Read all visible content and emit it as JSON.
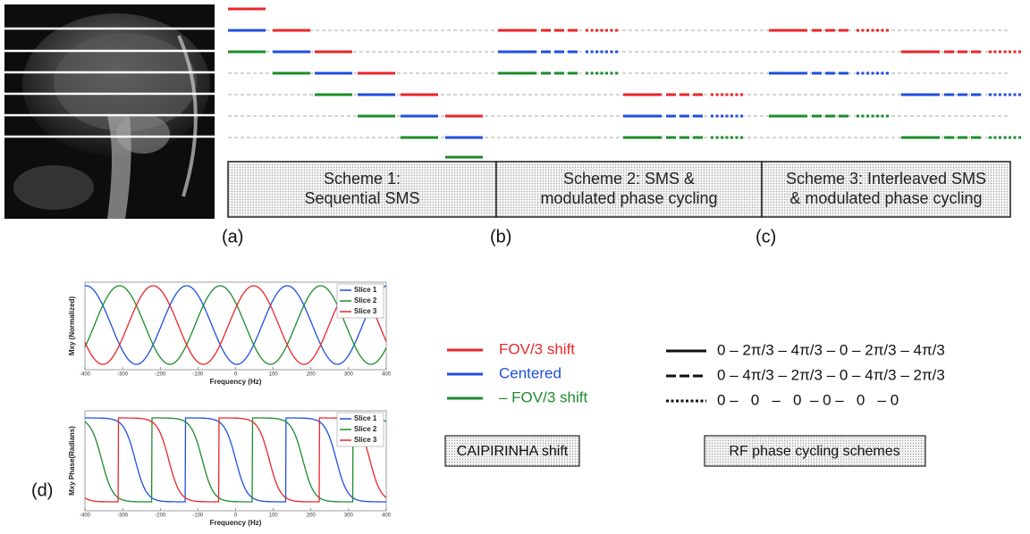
{
  "panels": [
    {
      "label": "(a)",
      "title_lines": [
        "Scheme 1:",
        "Sequential SMS"
      ]
    },
    {
      "label": "(b)",
      "title_lines": [
        "Scheme 2: SMS &",
        "modulated phase cycling"
      ]
    },
    {
      "label": "(c)",
      "title_lines": [
        "Scheme 3: Interleaved SMS",
        "& modulated phase cycling"
      ]
    }
  ],
  "panel_d_label": "(d)",
  "plots": [
    {
      "ylabel": "Mxy (Normalized)",
      "xlabel": "Frequency (Hz)",
      "legend": [
        "Slice 1",
        "Slice 2",
        "Slice 3"
      ],
      "xticks": [
        -400,
        -300,
        -200,
        -100,
        0,
        100,
        200,
        300,
        400
      ]
    },
    {
      "ylabel": "Mxy Phase(Radians)",
      "xlabel": "Frequency (Hz)",
      "legend": [
        "Slice 1",
        "Slice 2",
        "Slice 3"
      ],
      "xticks": [
        -400,
        -300,
        -200,
        -100,
        0,
        100,
        200,
        300,
        400
      ]
    }
  ],
  "caipirinha": {
    "items": [
      "FOV/3 shift",
      "Centered",
      "– FOV/3 shift"
    ],
    "title": "CAIPIRINHA shift"
  },
  "rf": {
    "items": [
      "0 – 2π/3 – 4π/3 – 0 – 2π/3 – 4π/3",
      "0 – 4π/3 – 2π/3 – 0 – 4π/3 – 2π/3",
      "0 –   0   –   0  – 0 –   0   – 0"
    ],
    "title": "RF phase cycling schemes"
  }
}
